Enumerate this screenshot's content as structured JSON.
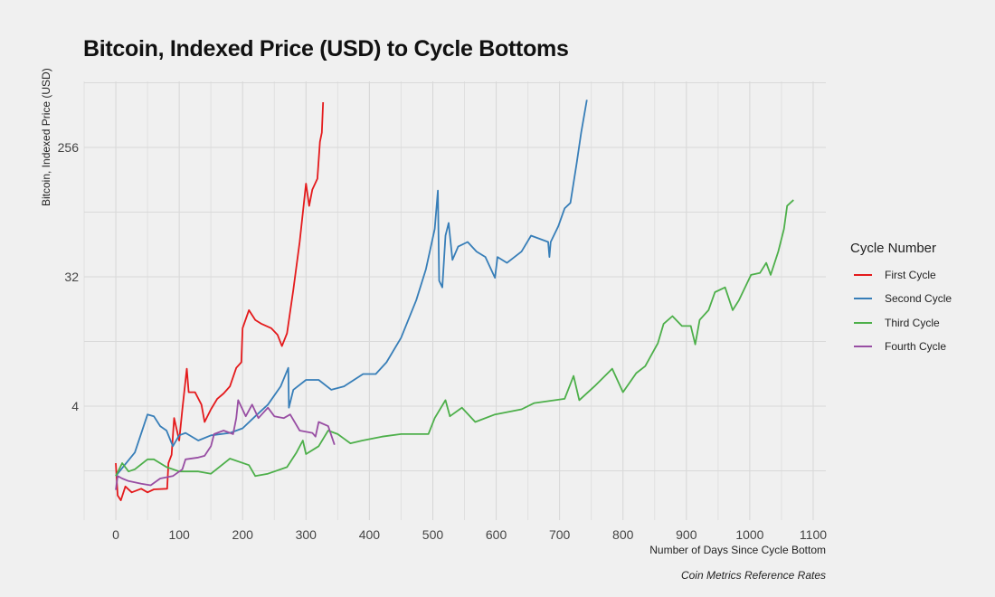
{
  "chart_data": {
    "type": "line",
    "title": "Bitcoin, Indexed Price (USD) to Cycle Bottoms",
    "xlabel": "Number of Days Since Cycle Bottom",
    "ylabel": "Bitcoin, Indexed Price (USD)",
    "caption": "Coin Metrics Reference Rates",
    "xlim": [
      -50,
      1120
    ],
    "ylim": [
      0.64,
      740
    ],
    "yscale": "log2",
    "x_ticks": [
      0,
      100,
      200,
      300,
      400,
      500,
      600,
      700,
      800,
      900,
      1000,
      1100
    ],
    "y_ticks": [
      4,
      32,
      256
    ],
    "grid": true,
    "legend": {
      "title": "Cycle Number",
      "position": "right"
    },
    "background": "#f0f0f0",
    "series": [
      {
        "name": "First Cycle",
        "color": "#e41a1c",
        "points": [
          [
            0,
            1.6
          ],
          [
            3,
            0.95
          ],
          [
            8,
            0.88
          ],
          [
            15,
            1.1
          ],
          [
            25,
            1.0
          ],
          [
            40,
            1.06
          ],
          [
            50,
            1.0
          ],
          [
            60,
            1.05
          ],
          [
            81,
            1.06
          ],
          [
            83,
            1.6
          ],
          [
            88,
            1.83
          ],
          [
            92,
            3.3
          ],
          [
            100,
            2.3
          ],
          [
            105,
            3.8
          ],
          [
            112,
            7.3
          ],
          [
            115,
            5.0
          ],
          [
            125,
            5.0
          ],
          [
            135,
            4.1
          ],
          [
            140,
            3.1
          ],
          [
            150,
            3.8
          ],
          [
            160,
            4.5
          ],
          [
            170,
            4.9
          ],
          [
            180,
            5.5
          ],
          [
            190,
            7.4
          ],
          [
            198,
            8.1
          ],
          [
            200,
            14
          ],
          [
            210,
            18.7
          ],
          [
            220,
            16
          ],
          [
            230,
            15
          ],
          [
            245,
            14
          ],
          [
            255,
            12.6
          ],
          [
            262,
            10.5
          ],
          [
            270,
            12.9
          ],
          [
            280,
            26
          ],
          [
            290,
            56
          ],
          [
            300,
            143
          ],
          [
            305,
            100
          ],
          [
            310,
            130
          ],
          [
            318,
            155
          ],
          [
            322,
            280
          ],
          [
            325,
            325
          ],
          [
            327,
            530
          ]
        ]
      },
      {
        "name": "Second Cycle",
        "color": "#377eb8",
        "points": [
          [
            0,
            1.3
          ],
          [
            10,
            1.48
          ],
          [
            30,
            1.9
          ],
          [
            50,
            3.5
          ],
          [
            60,
            3.4
          ],
          [
            70,
            2.9
          ],
          [
            80,
            2.7
          ],
          [
            90,
            2.1
          ],
          [
            100,
            2.5
          ],
          [
            110,
            2.6
          ],
          [
            130,
            2.3
          ],
          [
            150,
            2.5
          ],
          [
            180,
            2.6
          ],
          [
            200,
            2.8
          ],
          [
            220,
            3.4
          ],
          [
            240,
            4.1
          ],
          [
            260,
            5.5
          ],
          [
            272,
            7.4
          ],
          [
            273,
            3.9
          ],
          [
            280,
            5.2
          ],
          [
            300,
            6.1
          ],
          [
            320,
            6.1
          ],
          [
            340,
            5.2
          ],
          [
            360,
            5.5
          ],
          [
            390,
            6.7
          ],
          [
            410,
            6.7
          ],
          [
            427,
            8.1
          ],
          [
            450,
            12
          ],
          [
            474,
            22
          ],
          [
            489,
            36
          ],
          [
            503,
            69
          ],
          [
            508,
            128
          ],
          [
            510,
            30
          ],
          [
            515,
            27
          ],
          [
            520,
            62
          ],
          [
            525,
            76
          ],
          [
            531,
            42
          ],
          [
            540,
            52
          ],
          [
            555,
            56
          ],
          [
            569,
            48
          ],
          [
            583,
            44
          ],
          [
            598,
            31.5
          ],
          [
            602,
            44
          ],
          [
            617,
            40
          ],
          [
            640,
            48
          ],
          [
            655,
            62
          ],
          [
            682,
            56
          ],
          [
            684,
            44
          ],
          [
            686,
            56
          ],
          [
            698,
            72
          ],
          [
            708,
            96
          ],
          [
            717,
            105
          ],
          [
            727,
            200
          ],
          [
            734,
            325
          ],
          [
            743,
            550
          ]
        ]
      },
      {
        "name": "Third Cycle",
        "color": "#4daf4a",
        "points": [
          [
            0,
            1.3
          ],
          [
            10,
            1.6
          ],
          [
            20,
            1.4
          ],
          [
            30,
            1.45
          ],
          [
            50,
            1.7
          ],
          [
            60,
            1.7
          ],
          [
            80,
            1.5
          ],
          [
            100,
            1.4
          ],
          [
            130,
            1.4
          ],
          [
            150,
            1.35
          ],
          [
            180,
            1.72
          ],
          [
            210,
            1.55
          ],
          [
            220,
            1.3
          ],
          [
            240,
            1.35
          ],
          [
            270,
            1.5
          ],
          [
            285,
            1.9
          ],
          [
            295,
            2.3
          ],
          [
            300,
            1.85
          ],
          [
            320,
            2.1
          ],
          [
            335,
            2.7
          ],
          [
            350,
            2.55
          ],
          [
            370,
            2.2
          ],
          [
            389,
            2.3
          ],
          [
            420,
            2.45
          ],
          [
            450,
            2.55
          ],
          [
            493,
            2.55
          ],
          [
            503,
            3.3
          ],
          [
            520,
            4.4
          ],
          [
            527,
            3.4
          ],
          [
            546,
            3.9
          ],
          [
            567,
            3.1
          ],
          [
            598,
            3.5
          ],
          [
            640,
            3.8
          ],
          [
            660,
            4.2
          ],
          [
            708,
            4.5
          ],
          [
            722,
            6.5
          ],
          [
            731,
            4.4
          ],
          [
            755,
            5.5
          ],
          [
            783,
            7.3
          ],
          [
            800,
            5.0
          ],
          [
            821,
            6.8
          ],
          [
            835,
            7.6
          ],
          [
            855,
            11
          ],
          [
            864,
            15
          ],
          [
            878,
            17
          ],
          [
            893,
            14.5
          ],
          [
            907,
            14.5
          ],
          [
            914,
            10.8
          ],
          [
            921,
            16
          ],
          [
            935,
            18.7
          ],
          [
            945,
            25
          ],
          [
            961,
            27
          ],
          [
            973,
            18.7
          ],
          [
            983,
            22
          ],
          [
            1002,
            33
          ],
          [
            1016,
            34
          ],
          [
            1026,
            40
          ],
          [
            1033,
            33
          ],
          [
            1045,
            48
          ],
          [
            1054,
            69
          ],
          [
            1059,
            100
          ],
          [
            1069,
            110
          ]
        ]
      },
      {
        "name": "Fourth Cycle",
        "color": "#984ea3",
        "points": [
          [
            0,
            1.04
          ],
          [
            3,
            1.3
          ],
          [
            10,
            1.25
          ],
          [
            20,
            1.2
          ],
          [
            40,
            1.15
          ],
          [
            55,
            1.12
          ],
          [
            70,
            1.25
          ],
          [
            90,
            1.3
          ],
          [
            105,
            1.45
          ],
          [
            110,
            1.7
          ],
          [
            130,
            1.75
          ],
          [
            140,
            1.8
          ],
          [
            150,
            2.1
          ],
          [
            155,
            2.55
          ],
          [
            170,
            2.7
          ],
          [
            185,
            2.55
          ],
          [
            190,
            3.3
          ],
          [
            193,
            4.4
          ],
          [
            205,
            3.4
          ],
          [
            215,
            4.1
          ],
          [
            225,
            3.3
          ],
          [
            240,
            3.9
          ],
          [
            250,
            3.4
          ],
          [
            265,
            3.3
          ],
          [
            275,
            3.5
          ],
          [
            290,
            2.7
          ],
          [
            310,
            2.6
          ],
          [
            315,
            2.45
          ],
          [
            320,
            3.1
          ],
          [
            335,
            2.9
          ],
          [
            345,
            2.15
          ]
        ]
      }
    ]
  }
}
